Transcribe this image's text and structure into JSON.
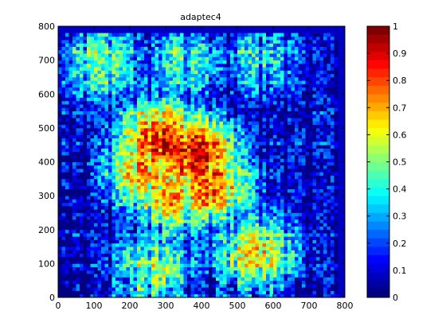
{
  "chart_data": {
    "type": "heatmap",
    "title": "adaptec4",
    "xlabel": "",
    "ylabel": "",
    "xlim": [
      0,
      800
    ],
    "ylim": [
      0,
      800
    ],
    "x_ticks": [
      "0",
      "100",
      "200",
      "300",
      "400",
      "500",
      "600",
      "700",
      "800"
    ],
    "y_ticks": [
      "0",
      "100",
      "200",
      "300",
      "400",
      "500",
      "600",
      "700",
      "800"
    ],
    "grid": false,
    "colormap": "jet",
    "colorbar": {
      "range": [
        0,
        1
      ],
      "ticks": [
        "0",
        "0.1",
        "0.2",
        "0.3",
        "0.4",
        "0.5",
        "0.6",
        "0.7",
        "0.8",
        "0.9",
        "1"
      ],
      "levels": 32
    },
    "data_extent": {
      "x": [
        0,
        780
      ],
      "y": [
        0,
        780
      ]
    },
    "hotspots": [
      {
        "x": 380,
        "y": 420,
        "value": 0.95
      },
      {
        "x": 290,
        "y": 460,
        "value": 0.9
      },
      {
        "x": 250,
        "y": 380,
        "value": 0.75
      },
      {
        "x": 420,
        "y": 330,
        "value": 0.8
      },
      {
        "x": 320,
        "y": 300,
        "value": 0.7
      },
      {
        "x": 550,
        "y": 130,
        "value": 0.65
      },
      {
        "x": 270,
        "y": 80,
        "value": 0.55
      },
      {
        "x": 120,
        "y": 690,
        "value": 0.5
      },
      {
        "x": 350,
        "y": 690,
        "value": 0.45
      },
      {
        "x": 560,
        "y": 700,
        "value": 0.4
      }
    ]
  }
}
